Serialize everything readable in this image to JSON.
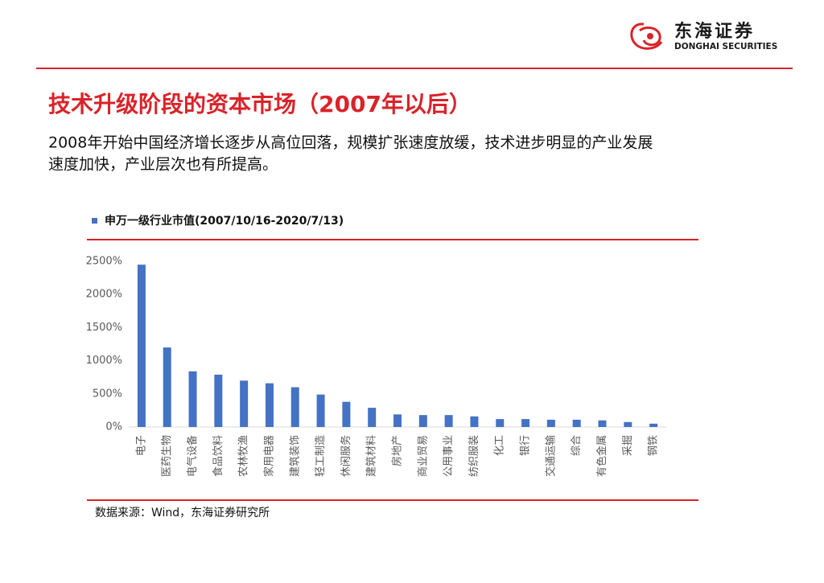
{
  "header": {
    "logo_cn": "东海证券",
    "logo_en": "DONGHAI SECURITIES",
    "title": "技术升级阶段的资本市场（2007年以后）",
    "body": [
      "2008年开始中国经济增长逐步从高位回落，规模扩张速度放缓，技术进步明显的产业发展",
      "速度加快，产业层次也有所提高。"
    ]
  },
  "chart_data": {
    "type": "bar",
    "categories": [
      "电子",
      "医药生物",
      "电气设备",
      "食品饮料",
      "农林牧渔",
      "家用电器",
      "建筑装饰",
      "轻工制造",
      "休闲服务",
      "建筑材料",
      "房地产",
      "商业贸易",
      "公用事业",
      "纺织服装",
      "化工",
      "银行",
      "交通运输",
      "综合",
      "有色金属",
      "采掘",
      "钢铁"
    ],
    "series": [
      {
        "name": "申万一级行业市值(2007/10/16-2020/7/13)",
        "color": "#4472c4",
        "values": [
          2450,
          1200,
          840,
          790,
          700,
          660,
          600,
          490,
          380,
          290,
          190,
          180,
          180,
          160,
          120,
          120,
          110,
          110,
          100,
          75,
          50
        ]
      }
    ],
    "ylim": [
      0,
      2500
    ],
    "yticks": [
      {
        "value": 0,
        "label": "0%"
      },
      {
        "value": 500,
        "label": "500%"
      },
      {
        "value": 1000,
        "label": "1000%"
      },
      {
        "value": 1500,
        "label": "1500%"
      },
      {
        "value": 2000,
        "label": "2000%"
      },
      {
        "value": 2500,
        "label": "2500%"
      }
    ],
    "grid": false
  },
  "source": "数据来源：Wind，东海证券研究所"
}
